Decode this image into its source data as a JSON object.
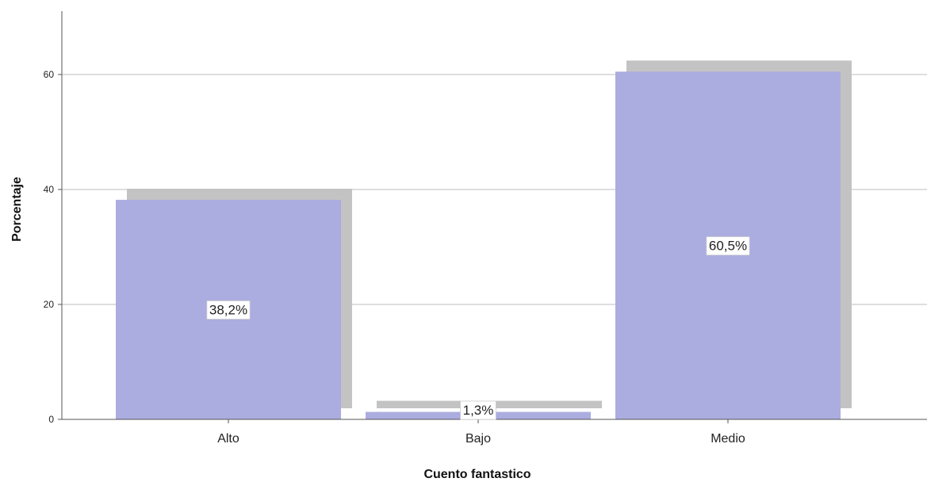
{
  "chart_data": {
    "type": "bar",
    "categories": [
      "Alto",
      "Bajo",
      "Medio"
    ],
    "values": [
      38.2,
      1.3,
      60.5
    ],
    "data_labels": [
      "38,2%",
      "1,3%",
      "60,5%"
    ],
    "xlabel": "Cuento fantastico",
    "ylabel": "Porcentaje",
    "ylim": [
      0,
      70
    ],
    "yticks": [
      0,
      20,
      40,
      60
    ],
    "ytick_labels": [
      "0",
      "20",
      "40",
      "60"
    ],
    "grid": true,
    "bar_shadow": true,
    "colors": {
      "bar": "#abacdf",
      "shadow": "#c3c3c3",
      "grid": "#bdbdbd",
      "axis": "#555555"
    }
  }
}
